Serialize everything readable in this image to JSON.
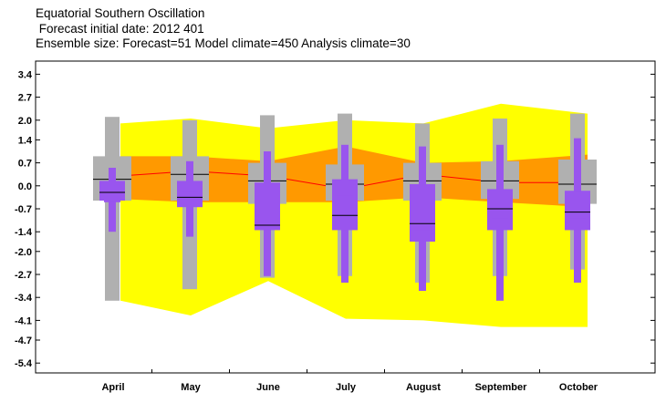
{
  "header": {
    "title": "Equatorial Southern Oscillation",
    "subtitle": " Forecast initial date: 2012 401",
    "ensemble": "Ensemble size: Forecast=51 Model climate=450 Analysis climate=30"
  },
  "colors": {
    "climate_outer": "#ffff00",
    "climate_inner": "#ff9900",
    "climate_median": "#ff0000",
    "model_climate_box": "#b0b0b0",
    "forecast_box": "#9955ee",
    "median_line": "#000000"
  },
  "chart_data": {
    "type": "box",
    "title": "Equatorial Southern Oscillation",
    "xlabel": "",
    "ylabel": "",
    "categories": [
      "April",
      "May",
      "June",
      "July",
      "August",
      "September",
      "October"
    ],
    "ylim": [
      -5.7,
      3.8
    ],
    "yticks": [
      3.4,
      2.7,
      2.0,
      1.4,
      0.7,
      0.0,
      -0.7,
      -1.4,
      -2.0,
      -2.7,
      -3.4,
      -4.1,
      -4.7,
      -5.4
    ],
    "ytick_labels": [
      "3.4",
      "2.7",
      "2.0",
      "1.4",
      "0.7",
      "0.0",
      "-0.7",
      "-1.4",
      "-2.0",
      "-2.7",
      "-3.4",
      "-4.1",
      "-4.7",
      "-5.4"
    ],
    "grid": false,
    "analysis_climate": {
      "outer_high": [
        1.9,
        2.05,
        1.75,
        2.0,
        1.9,
        2.5,
        2.2
      ],
      "outer_low": [
        -3.5,
        -3.95,
        -2.9,
        -4.05,
        -4.1,
        -4.3,
        -4.3
      ],
      "inner_high": [
        0.9,
        0.9,
        0.75,
        1.2,
        0.7,
        0.75,
        0.95
      ],
      "inner_low": [
        -0.4,
        -0.5,
        -0.5,
        -0.5,
        -0.35,
        -0.5,
        -0.65
      ],
      "median": [
        0.3,
        0.45,
        0.3,
        -0.1,
        0.35,
        0.1,
        0.1
      ]
    },
    "model_climate": {
      "whisker_high": [
        2.1,
        2.0,
        2.15,
        2.2,
        1.9,
        2.05,
        2.2
      ],
      "whisker_low": [
        -3.5,
        -3.15,
        -2.8,
        -2.75,
        -2.95,
        -2.75,
        -2.55
      ],
      "outer_high": [
        0.9,
        0.9,
        0.7,
        0.65,
        0.7,
        0.75,
        0.8
      ],
      "outer_low": [
        -0.45,
        -0.45,
        -0.55,
        -0.45,
        -0.45,
        -0.4,
        -0.55
      ],
      "inner_high": [
        0.45,
        0.45,
        0.45,
        0.4,
        0.45,
        0.45,
        0.45
      ],
      "inner_low": [
        -0.1,
        -0.1,
        -0.15,
        -0.1,
        -0.05,
        -0.05,
        -0.1
      ],
      "median": [
        0.2,
        0.35,
        0.15,
        0.05,
        0.15,
        0.15,
        0.05
      ]
    },
    "forecast": {
      "whisker_high": [
        0.55,
        0.75,
        1.05,
        1.25,
        1.2,
        1.25,
        1.45
      ],
      "whisker_low": [
        -1.4,
        -1.55,
        -2.75,
        -2.95,
        -3.2,
        -3.5,
        -2.95
      ],
      "outer_high": [
        0.15,
        0.15,
        0.1,
        0.2,
        0.05,
        -0.1,
        -0.15
      ],
      "outer_low": [
        -0.45,
        -0.65,
        -1.35,
        -1.35,
        -1.7,
        -1.35,
        -1.35
      ],
      "inner_high": [
        -0.1,
        -0.15,
        -0.35,
        -0.3,
        -0.5,
        -0.35,
        -0.5
      ],
      "inner_low": [
        -0.5,
        -0.55,
        -1.05,
        -1.15,
        -1.35,
        -1.0,
        -1.0
      ],
      "median": [
        -0.2,
        -0.35,
        -1.2,
        -0.9,
        -1.15,
        -0.7,
        -0.8
      ]
    }
  }
}
